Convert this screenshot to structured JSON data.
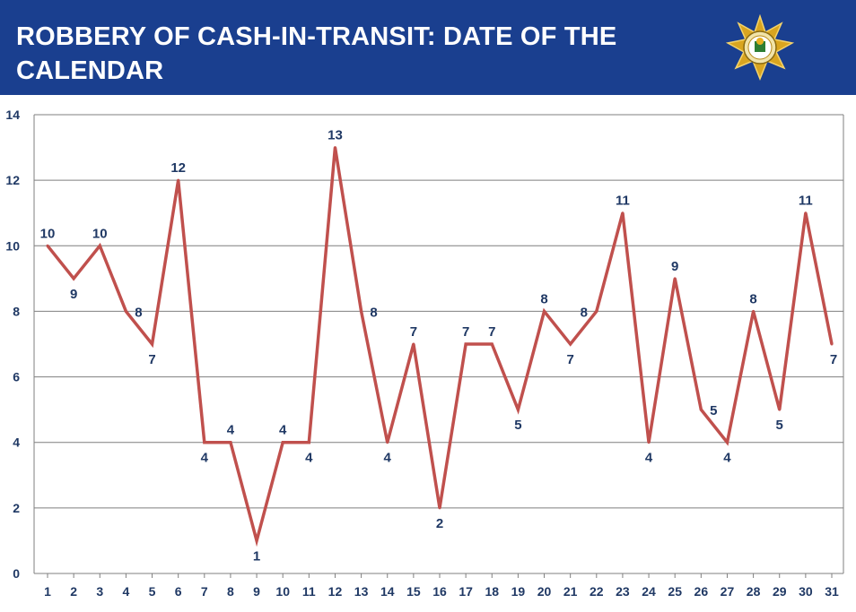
{
  "header": {
    "title": "ROBBERY OF CASH-IN-TRANSIT: DATE OF THE CALENDAR"
  },
  "emblem": {
    "name": "police-star-emblem-icon"
  },
  "colors": {
    "header_bg": "#1a3f8f",
    "line": "#c0504d",
    "label": "#1f3864",
    "grid": "#7f7f7f",
    "emblem_gold": "#d9a520"
  },
  "chart_data": {
    "type": "line",
    "title": "",
    "xlabel": "",
    "ylabel": "",
    "categories": [
      "1",
      "2",
      "3",
      "4",
      "5",
      "6",
      "7",
      "8",
      "9",
      "10",
      "11",
      "12",
      "13",
      "14",
      "15",
      "16",
      "17",
      "18",
      "19",
      "20",
      "21",
      "22",
      "23",
      "24",
      "25",
      "26",
      "27",
      "28",
      "29",
      "30",
      "31"
    ],
    "values": [
      10,
      9,
      10,
      8,
      7,
      12,
      4,
      4,
      1,
      4,
      4,
      13,
      8,
      4,
      7,
      2,
      7,
      7,
      5,
      8,
      7,
      8,
      11,
      4,
      9,
      5,
      4,
      8,
      5,
      11,
      7
    ],
    "ylim": [
      0,
      14
    ],
    "yticks": [
      0,
      2,
      4,
      6,
      8,
      10,
      12,
      14
    ],
    "grid": true,
    "legend": "none",
    "data_labels": true
  }
}
